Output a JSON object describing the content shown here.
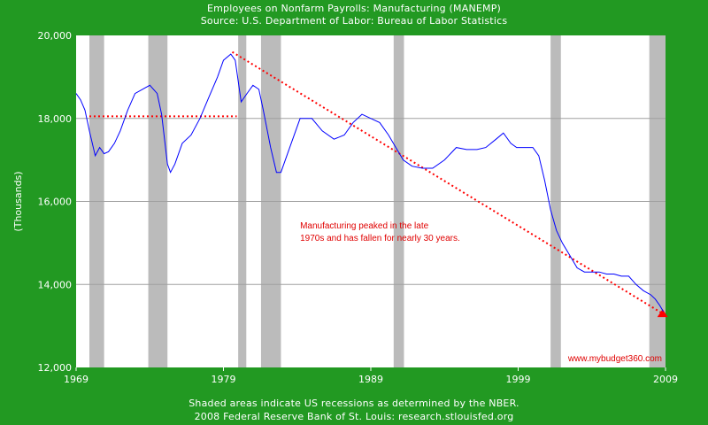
{
  "chart_data": {
    "type": "line",
    "title": "Employees on Nonfarm Payrolls: Manufacturing (MANEMP)",
    "subtitle": "Source: U.S. Department of Labor: Bureau of Labor Statistics",
    "ylabel": "(Thousands)",
    "xlabel": "",
    "xlim": [
      1969,
      2009
    ],
    "ylim": [
      12000,
      20000
    ],
    "xticks": [
      1969,
      1979,
      1989,
      1999,
      2009
    ],
    "yticks": [
      12000,
      14000,
      16000,
      18000,
      20000
    ],
    "ytick_labels": [
      "12,000",
      "14,000",
      "16,000",
      "18,000",
      "20,000"
    ],
    "xtick_labels": [
      "1969",
      "1979",
      "1989",
      "1999",
      "2009"
    ],
    "grid": true,
    "series_color": "#0000ff",
    "recession_color": "#bbbbbb",
    "annotation_color": "#ff0000",
    "recessions": [
      [
        1969.9,
        1970.9
      ],
      [
        1973.9,
        1975.2
      ],
      [
        1980.0,
        1980.55
      ],
      [
        1981.55,
        1982.9
      ],
      [
        1990.55,
        1991.25
      ],
      [
        2001.2,
        2001.9
      ],
      [
        2007.9,
        2009
      ]
    ],
    "series": [
      {
        "name": "MANEMP",
        "x": [
          1969.0,
          1969.3,
          1969.6,
          1969.9,
          1970.3,
          1970.6,
          1970.9,
          1971.2,
          1971.6,
          1972.0,
          1972.5,
          1973.0,
          1973.5,
          1974.0,
          1974.5,
          1974.8,
          1975.2,
          1975.4,
          1975.7,
          1976.2,
          1976.8,
          1977.4,
          1978.0,
          1978.6,
          1979.0,
          1979.5,
          1979.8,
          1980.2,
          1980.6,
          1981.0,
          1981.4,
          1981.7,
          1982.2,
          1982.6,
          1982.9,
          1983.5,
          1984.2,
          1985.0,
          1985.7,
          1986.5,
          1987.2,
          1987.8,
          1988.4,
          1989.0,
          1989.6,
          1990.2,
          1990.7,
          1991.2,
          1991.8,
          1992.5,
          1993.2,
          1994.0,
          1994.8,
          1995.5,
          1996.2,
          1996.8,
          1997.5,
          1998.0,
          1998.5,
          1998.9,
          1999.5,
          2000.0,
          2000.4,
          2000.8,
          2001.2,
          2001.6,
          2002.0,
          2002.5,
          2003.0,
          2003.5,
          2004.0,
          2004.5,
          2005.0,
          2005.5,
          2006.0,
          2006.5,
          2007.0,
          2007.5,
          2008.0,
          2008.3,
          2008.6,
          2008.85
        ],
        "values": [
          18600,
          18450,
          18200,
          17700,
          17100,
          17300,
          17150,
          17200,
          17400,
          17700,
          18200,
          18600,
          18700,
          18800,
          18600,
          18100,
          16900,
          16700,
          16900,
          17400,
          17600,
          18000,
          18500,
          19000,
          19400,
          19550,
          19400,
          18400,
          18600,
          18800,
          18700,
          18200,
          17300,
          16700,
          16700,
          17300,
          18000,
          18000,
          17700,
          17500,
          17600,
          17900,
          18100,
          18000,
          17900,
          17600,
          17300,
          17000,
          16850,
          16800,
          16800,
          17000,
          17300,
          17250,
          17250,
          17300,
          17500,
          17650,
          17400,
          17300,
          17300,
          17300,
          17100,
          16500,
          15800,
          15300,
          15000,
          14700,
          14400,
          14300,
          14300,
          14300,
          14250,
          14250,
          14200,
          14200,
          14000,
          13850,
          13750,
          13650,
          13500,
          13350
        ]
      }
    ],
    "trend_lines": [
      {
        "name": "peak-level",
        "x": [
          1969.9,
          1979.9
        ],
        "y": [
          18050,
          18050
        ]
      },
      {
        "name": "decline-arrow",
        "x": [
          1979.6,
          2008.8
        ],
        "y": [
          19600,
          13300
        ]
      }
    ],
    "annotation_lines": [
      "Manufacturing peaked in the late",
      "1970s and has fallen for nearly 30 years."
    ],
    "annotation_position": {
      "x": 1984.2,
      "y": 15350
    },
    "watermark": "www.mybudget360.com",
    "footer": [
      "Shaded areas indicate US recessions as determined by the NBER.",
      "2008 Federal Reserve Bank of St. Louis: research.stlouisfed.org"
    ]
  }
}
